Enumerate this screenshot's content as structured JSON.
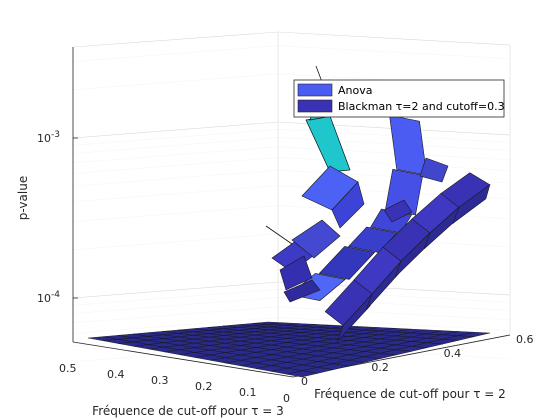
{
  "chart_data": {
    "type": "surface3d",
    "ylabel": "p-value",
    "xlabel": "Fréquence de cut-off pour τ = 2",
    "zlabel_bottom": "Fréquence de cut-off pour τ = 3",
    "y_scale": "log",
    "y_ticks": [
      {
        "value": 0.0001,
        "base": "10",
        "exp": "-4"
      },
      {
        "value": 0.001,
        "base": "10",
        "exp": "-3"
      }
    ],
    "tau2_ticks": [
      "0",
      "0.2",
      "0.4",
      "0.6"
    ],
    "tau3_ticks": [
      "0.5",
      "0.4",
      "0.3",
      "0.2",
      "0.1",
      "0"
    ],
    "legend": [
      {
        "label": "Anova",
        "color": "#4a5cf2"
      },
      {
        "label": "Blackman τ=2 and cutoff=0.3",
        "color": "#3a32b4"
      }
    ],
    "series": [
      {
        "name": "Anova",
        "color": "#4a5cf2",
        "floor_value": 3.5e-05,
        "points": [
          {
            "tau2": 0.3,
            "pvalue": 0.00185
          },
          {
            "tau2": 0.32,
            "pvalue": 0.00085
          },
          {
            "tau2": 0.3,
            "pvalue": 0.00048
          },
          {
            "tau2": 0.27,
            "pvalue": 0.00037
          },
          {
            "tau2": 0.22,
            "pvalue": 0.00028
          },
          {
            "tau2": 0.15,
            "pvalue": 0.00019
          },
          {
            "tau2": 0.08,
            "pvalue": 0.00014
          }
        ]
      },
      {
        "name": "Blackman τ=2 and cutoff=0.3",
        "color": "#3a32b4",
        "points": [
          {
            "tau2": 0.1,
            "pvalue": 9.5e-05
          },
          {
            "tau2": 0.18,
            "pvalue": 0.00015
          },
          {
            "tau2": 0.26,
            "pvalue": 0.00024
          },
          {
            "tau2": 0.34,
            "pvalue": 0.00036
          },
          {
            "tau2": 0.42,
            "pvalue": 0.00052
          },
          {
            "tau2": 0.5,
            "pvalue": 0.0007
          }
        ]
      }
    ]
  }
}
